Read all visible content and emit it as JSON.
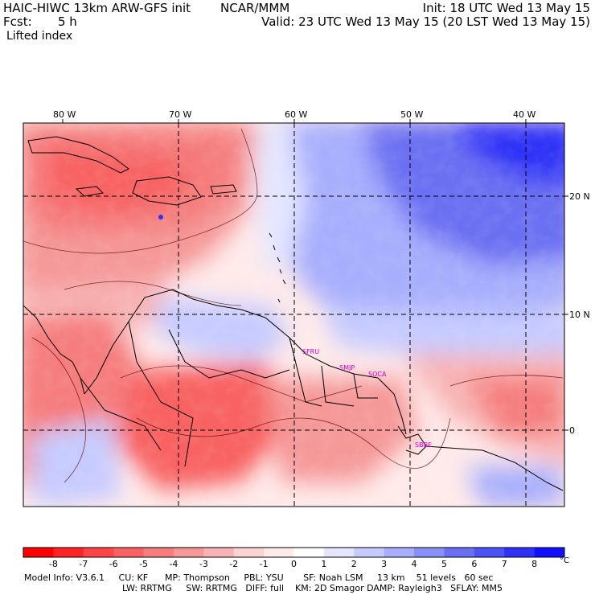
{
  "header": {
    "model": "HAIC-HIWC 13km ARW-GFS init",
    "org": "NCAR/MMM",
    "fcst_label": "Fcst:",
    "fcst_value": "5 h",
    "field": "Lifted index",
    "init": "Init: 18 UTC Wed 13 May 15",
    "valid": "Valid: 23 UTC Wed 13 May 15 (20 LST Wed 13 May 15)"
  },
  "map": {
    "lon_labels": [
      "80 W",
      "70 W",
      "60 W",
      "50 W",
      "40 W"
    ],
    "lat_labels": [
      "20 N",
      "10 N",
      "0"
    ],
    "cities": [
      "SFRU",
      "SMJP",
      "SOCA",
      "SBBE"
    ]
  },
  "colorbar": {
    "labels": [
      "-8",
      "-7",
      "-6",
      "-5",
      "-4",
      "-3",
      "-2",
      "-1",
      "0",
      "1",
      "2",
      "3",
      "4",
      "5",
      "6",
      "7",
      "8"
    ],
    "unit": "°C",
    "colors": [
      "#ff0000",
      "#ff2424",
      "#ff4545",
      "#f86262",
      "#f57d7d",
      "#f59898",
      "#f8b4b4",
      "#fbd3d3",
      "#ffeaea",
      "#ffffff",
      "#e4e6ff",
      "#c6cbff",
      "#a7aefc",
      "#8890f6",
      "#6b70f2",
      "#4d52f4",
      "#2f32f6",
      "#1010ff"
    ]
  },
  "footer": {
    "line1": "Model Info: V3.6.1     CU: KF      MP: Thompson     PBL: YSU       SF: Noah LSM     13 km    51 levels   60 sec",
    "line2": "LW: RRTMG     SW: RRTMG   DIFF: full    KM: 2D Smagor DAMP: Rayleigh3   SFLAY: MM5"
  }
}
